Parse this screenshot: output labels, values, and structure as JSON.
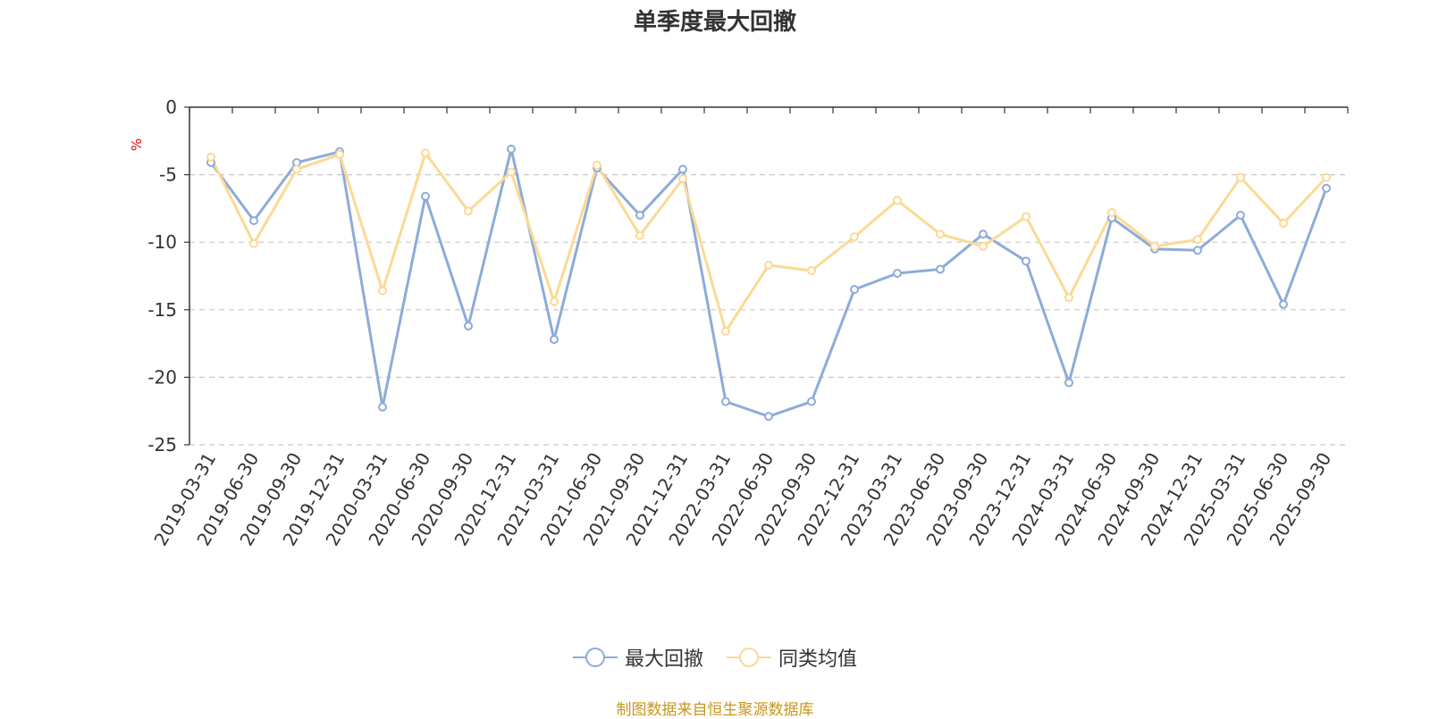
{
  "chart_data": {
    "type": "line",
    "title": "单季度最大回撤",
    "ylabel": "%",
    "xlabel": "",
    "ylim": [
      -25,
      0
    ],
    "yticks": [
      0,
      -5,
      -10,
      -15,
      -20,
      -25
    ],
    "grid": true,
    "legend_position": "bottom",
    "categories": [
      "2019-03-31",
      "2019-06-30",
      "2019-09-30",
      "2019-12-31",
      "2020-03-31",
      "2020-06-30",
      "2020-09-30",
      "2020-12-31",
      "2021-03-31",
      "2021-06-30",
      "2021-09-30",
      "2021-12-31",
      "2022-03-31",
      "2022-06-30",
      "2022-09-30",
      "2022-12-31",
      "2023-03-31",
      "2023-06-30",
      "2023-09-30",
      "2023-12-31",
      "2024-03-31",
      "2024-06-30",
      "2024-09-30",
      "2024-12-31",
      "2025-03-31",
      "2025-06-30",
      "2025-09-30"
    ],
    "series": [
      {
        "name": "最大回撤",
        "color": "#8eabd8",
        "values": [
          -4.1,
          -8.4,
          -4.1,
          -3.3,
          -22.2,
          -6.6,
          -16.2,
          -3.1,
          -17.2,
          -4.5,
          -8.0,
          -4.6,
          -21.8,
          -22.9,
          -21.8,
          -13.5,
          -12.3,
          -12.0,
          -9.4,
          -11.4,
          -20.4,
          -8.2,
          -10.5,
          -10.6,
          -8.0,
          -14.6,
          -6.0
        ]
      },
      {
        "name": "同类均值",
        "color": "#fcd994",
        "values": [
          -3.7,
          -10.1,
          -4.6,
          -3.5,
          -13.6,
          -3.4,
          -7.7,
          -4.8,
          -14.4,
          -4.3,
          -9.5,
          -5.3,
          -16.6,
          -11.7,
          -12.1,
          -9.6,
          -6.9,
          -9.4,
          -10.3,
          -8.1,
          -14.1,
          -7.8,
          -10.3,
          -9.8,
          -5.2,
          -8.6,
          -5.2
        ]
      }
    ]
  },
  "footer": {
    "source": "制图数据来自恒生聚源数据库"
  }
}
